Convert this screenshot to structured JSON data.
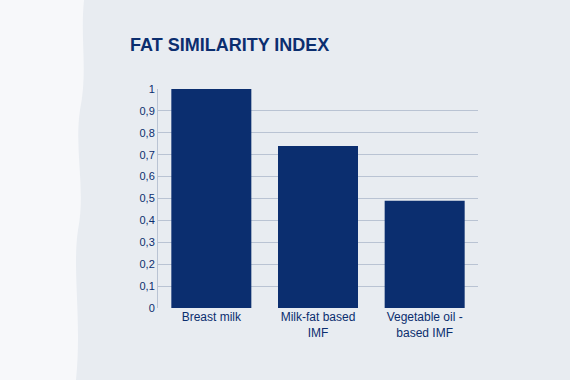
{
  "chart_data": {
    "type": "bar",
    "title": "FAT SIMILARITY INDEX",
    "categories": [
      "Breast milk",
      "Milk-fat based IMF",
      "Vegetable oil - based IMF"
    ],
    "values": [
      1,
      0.74,
      0.49
    ],
    "color": "#0b2e6f",
    "ylim": [
      0,
      1
    ],
    "yticks": [
      0,
      {
        "value": 0.1,
        "label": "0,1"
      },
      {
        "value": 0.2,
        "label": "0,2"
      },
      {
        "value": 0.3,
        "label": "0,3"
      },
      {
        "value": 0.4,
        "label": "0,4"
      },
      {
        "value": 0.5,
        "label": "0,5"
      },
      {
        "value": 0.6,
        "label": "0,6"
      },
      {
        "value": 0.7,
        "label": "0,7"
      },
      {
        "value": 0.8,
        "label": "0,8"
      },
      {
        "value": 0.9,
        "label": "0,9"
      },
      1
    ],
    "grid": true
  }
}
